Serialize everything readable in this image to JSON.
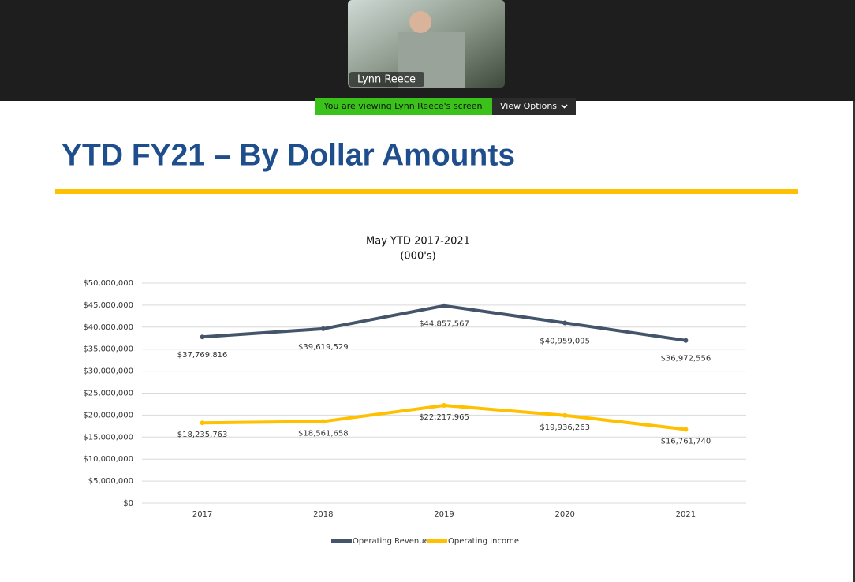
{
  "zoom": {
    "participant": "Lynn Reece",
    "banner": "You are viewing Lynn Reece's screen",
    "view_options": "View Options"
  },
  "slide": {
    "title": "YTD FY21 – By Dollar Amounts"
  },
  "chart_data": {
    "type": "line",
    "title": "May YTD 2017-2021",
    "subtitle": "(000's)",
    "categories": [
      "2017",
      "2018",
      "2019",
      "2020",
      "2021"
    ],
    "series": [
      {
        "name": "Operating Revenue",
        "color": "#44546a",
        "values": [
          37769816,
          39619529,
          44857567,
          40959095,
          36972556
        ],
        "value_labels": [
          "$37,769,816",
          "$39,619,529",
          "$44,857,567",
          "$40,959,095",
          "$36,972,556"
        ]
      },
      {
        "name": "Operating Income",
        "color": "#ffc000",
        "values": [
          18235763,
          18561658,
          22217965,
          19936263,
          16761740
        ],
        "value_labels": [
          "$18,235,763",
          "$18,561,658",
          "$22,217,965",
          "$19,936,263",
          "$16,761,740"
        ]
      }
    ],
    "ylim": [
      0,
      50000000
    ],
    "yticks": [
      {
        "value": 0,
        "label": "$0"
      },
      {
        "value": 5000000,
        "label": "$5,000,000"
      },
      {
        "value": 10000000,
        "label": "$10,000,000"
      },
      {
        "value": 15000000,
        "label": "$15,000,000"
      },
      {
        "value": 20000000,
        "label": "$20,000,000"
      },
      {
        "value": 25000000,
        "label": "$25,000,000"
      },
      {
        "value": 30000000,
        "label": "$30,000,000"
      },
      {
        "value": 35000000,
        "label": "$35,000,000"
      },
      {
        "value": 40000000,
        "label": "$40,000,000"
      },
      {
        "value": 45000000,
        "label": "$45,000,000"
      },
      {
        "value": 50000000,
        "label": "$50,000,000"
      }
    ],
    "grid": true,
    "legend": "bottom"
  }
}
